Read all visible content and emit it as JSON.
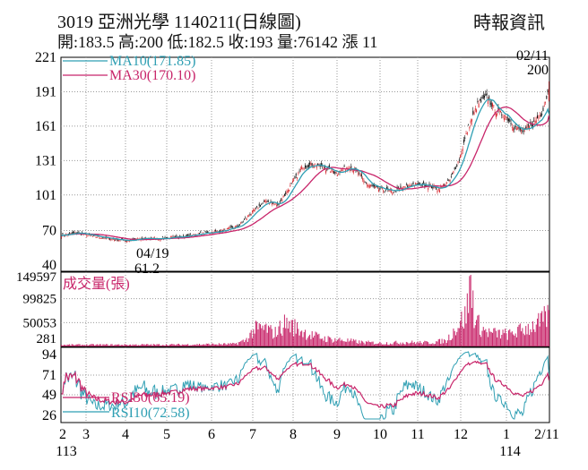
{
  "header": {
    "title": "3019  亞洲光學 1140211(日線圖)",
    "source": "時報資訊",
    "ohlc": "開:183.5 高:200 低:182.5 收:193 量:76142 漲 11"
  },
  "colors": {
    "up": "#d8282f",
    "down": "#111111",
    "ma10": "#2f9fb3",
    "ma30": "#c8256a",
    "volume": "#c8256a",
    "rsi30": "#c8256a",
    "rsi10": "#2f9fb3",
    "grid": "#9a9a9a"
  },
  "chart_data": [
    {
      "type": "candlestick",
      "legend": [
        {
          "name": "MA10(171.85)"
        },
        {
          "name": "MA30(170.10)"
        }
      ],
      "yticks": [
        "221",
        "191",
        "161",
        "131",
        "101",
        "70",
        "40"
      ],
      "ylim": [
        40,
        221
      ],
      "annotations": {
        "low_date": "04/19",
        "low_value": "61.2",
        "high_date": "02/11",
        "high_value": "200"
      },
      "anchors": [
        [
          0,
          66
        ],
        [
          14,
          68
        ],
        [
          28,
          65
        ],
        [
          42,
          63
        ],
        [
          56,
          61.2
        ],
        [
          70,
          63
        ],
        [
          84,
          63
        ],
        [
          98,
          64
        ],
        [
          112,
          66
        ],
        [
          126,
          68
        ],
        [
          140,
          70
        ],
        [
          154,
          74
        ],
        [
          168,
          88
        ],
        [
          178,
          96
        ],
        [
          188,
          92
        ],
        [
          200,
          110
        ],
        [
          210,
          126
        ],
        [
          220,
          128
        ],
        [
          230,
          124
        ],
        [
          240,
          120
        ],
        [
          250,
          126
        ],
        [
          258,
          120
        ],
        [
          266,
          110
        ],
        [
          276,
          106
        ],
        [
          290,
          104
        ],
        [
          304,
          110
        ],
        [
          316,
          110
        ],
        [
          328,
          106
        ],
        [
          338,
          114
        ],
        [
          346,
          132
        ],
        [
          354,
          160
        ],
        [
          362,
          180
        ],
        [
          370,
          186
        ],
        [
          378,
          174
        ],
        [
          386,
          170
        ],
        [
          394,
          160
        ],
        [
          402,
          156
        ],
        [
          412,
          165
        ],
        [
          418,
          173
        ],
        [
          424,
          193
        ]
      ],
      "ma10_end": 171.85,
      "ma30_end": 170.1
    },
    {
      "type": "bar",
      "title": "成交量(張)",
      "yticks": [
        "149597",
        "99825",
        "50053",
        "281"
      ],
      "ylim": [
        281,
        149597
      ],
      "profile": [
        [
          0,
          4000
        ],
        [
          100,
          4500
        ],
        [
          150,
          6000
        ],
        [
          160,
          14000
        ],
        [
          168,
          40000
        ],
        [
          178,
          42000
        ],
        [
          185,
          30000
        ],
        [
          195,
          55000
        ],
        [
          205,
          42000
        ],
        [
          215,
          28000
        ],
        [
          230,
          18000
        ],
        [
          245,
          15000
        ],
        [
          260,
          10000
        ],
        [
          280,
          8000
        ],
        [
          300,
          10000
        ],
        [
          320,
          9000
        ],
        [
          335,
          14000
        ],
        [
          345,
          50000
        ],
        [
          352,
          72000
        ],
        [
          356,
          149597
        ],
        [
          360,
          60000
        ],
        [
          366,
          40000
        ],
        [
          372,
          32000
        ],
        [
          380,
          30000
        ],
        [
          390,
          28000
        ],
        [
          400,
          38000
        ],
        [
          410,
          48000
        ],
        [
          418,
          56000
        ],
        [
          424,
          76142
        ]
      ]
    },
    {
      "type": "line",
      "series": [
        {
          "name": "RSI30(65.19)"
        },
        {
          "name": "RSI10(72.58)"
        }
      ],
      "yticks": [
        "94",
        "71",
        "49",
        "26"
      ],
      "ylim": [
        26,
        94
      ],
      "x_ticks": [
        "2",
        "3",
        "4",
        "5",
        "6",
        "7",
        "8",
        "9",
        "10",
        "11",
        "12",
        "1",
        "2/11"
      ],
      "x_year_labels": [
        "113",
        "114"
      ]
    }
  ]
}
